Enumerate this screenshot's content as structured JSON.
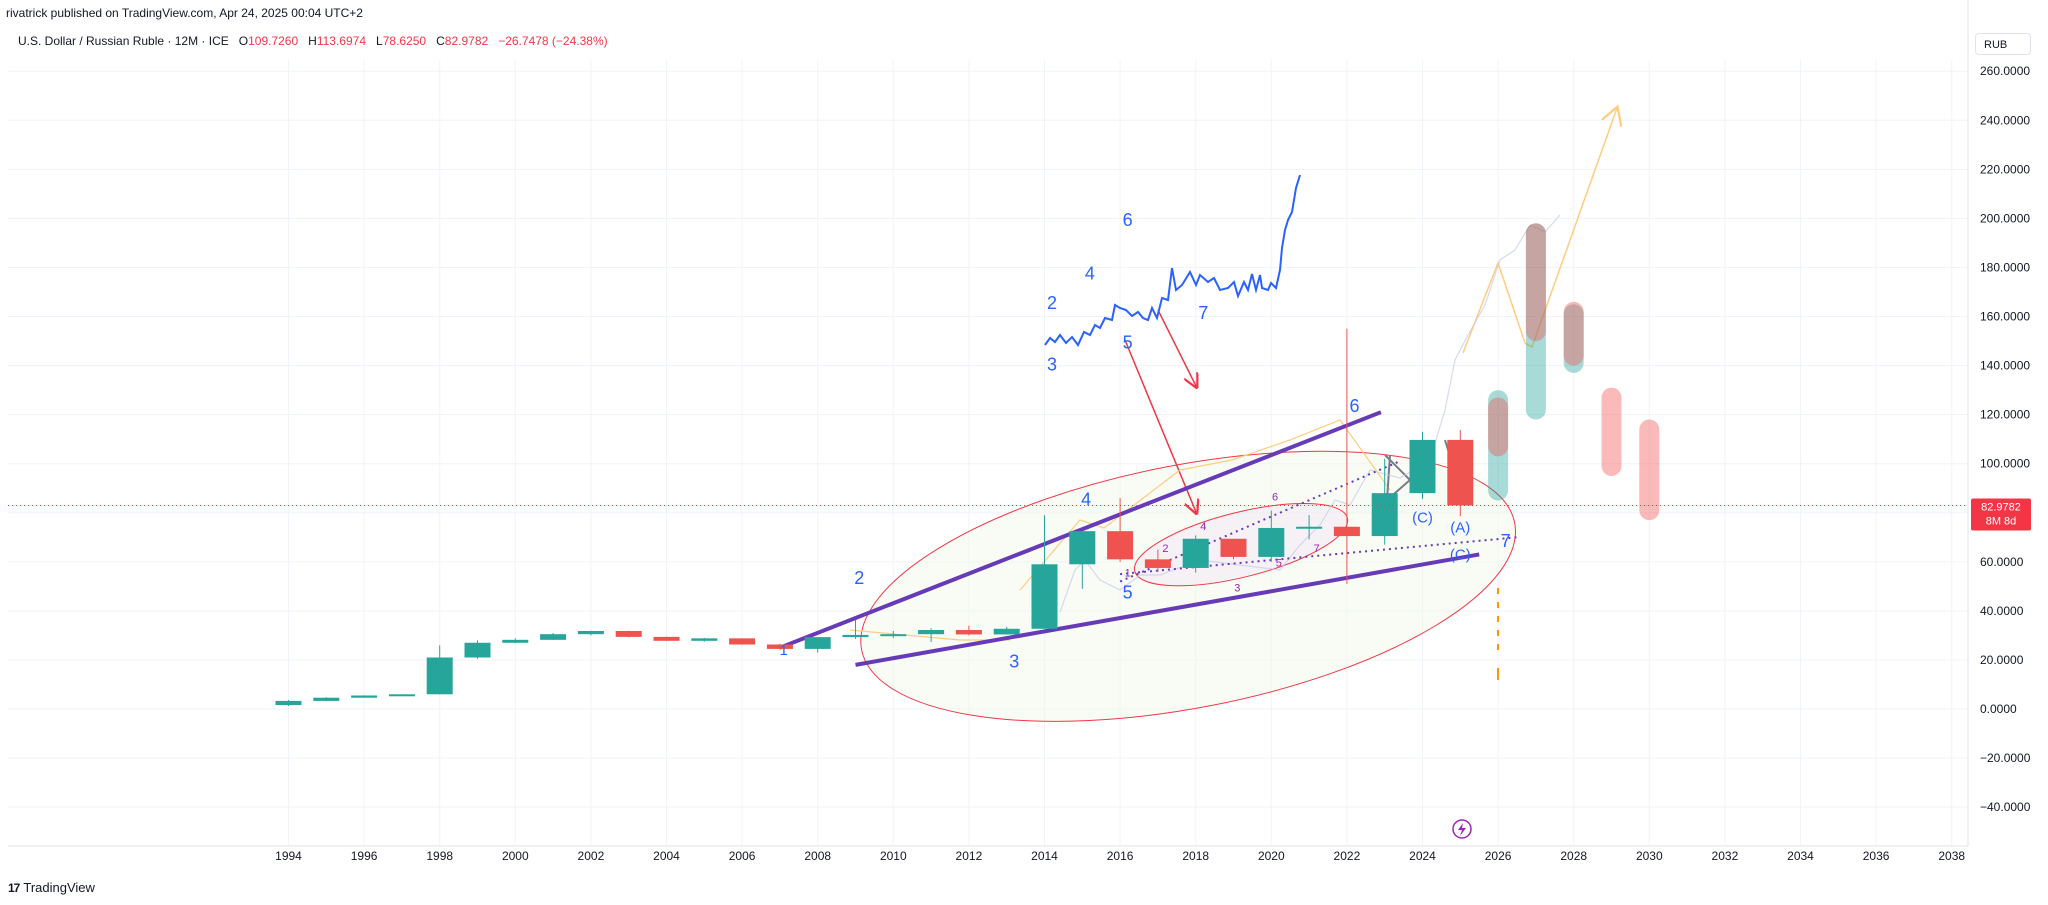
{
  "header": {
    "published": "rivatrick published on TradingView.com, Apr 24, 2025 00:04 UTC+2",
    "symbol_title": "U.S. Dollar / Russian Ruble · 12M · ICE",
    "ohlc": [
      {
        "label": "O",
        "value": "109.7260"
      },
      {
        "label": "H",
        "value": "113.6974"
      },
      {
        "label": "L",
        "value": "78.6250"
      },
      {
        "label": "C",
        "value": "82.9782"
      }
    ],
    "change": "−26.7478 (−24.38%)",
    "currency": "RUB"
  },
  "price_tag": {
    "value": "82.9782",
    "countdown": "8M 8d"
  },
  "footer": {
    "brand": "TradingView",
    "logo_text": "17"
  },
  "colors": {
    "up": "#26a69a",
    "down": "#ef5350",
    "trendline": "#673ab7",
    "annotation_blue": "#2962ff",
    "ellipse": "#f23645",
    "projection": "#ffcc80"
  },
  "chart_data": {
    "type": "candlestick",
    "title": "U.S. Dollar / Russian Ruble · 12M · ICE",
    "x_ticks": [
      "1994",
      "1996",
      "1998",
      "2000",
      "2002",
      "2004",
      "2006",
      "2008",
      "2010",
      "2012",
      "2014",
      "2016",
      "2018",
      "2020",
      "2022",
      "2024",
      "2026",
      "2028",
      "2030",
      "2032",
      "2034",
      "2036",
      "2038"
    ],
    "y_ticks": [
      "260.0000",
      "240.0000",
      "220.0000",
      "200.0000",
      "180.0000",
      "160.0000",
      "140.0000",
      "120.0000",
      "100.0000",
      "80.0000",
      "60.0000",
      "40.0000",
      "20.0000",
      "0.0000",
      "−20.0000",
      "−40.0000"
    ],
    "ylim": [
      -48,
      274
    ],
    "candles": [
      {
        "year": 1994,
        "open": 1.6,
        "high": 3.6,
        "low": 1.2,
        "close": 3.3
      },
      {
        "year": 1995,
        "open": 3.3,
        "high": 4.8,
        "low": 3.2,
        "close": 4.6
      },
      {
        "year": 1996,
        "open": 4.6,
        "high": 5.6,
        "low": 4.6,
        "close": 5.5
      },
      {
        "year": 1997,
        "open": 5.5,
        "high": 6.0,
        "low": 5.4,
        "close": 6.0
      },
      {
        "year": 1998,
        "open": 6.0,
        "high": 26.0,
        "low": 5.9,
        "close": 21.0
      },
      {
        "year": 1999,
        "open": 21.0,
        "high": 28.0,
        "low": 20.5,
        "close": 27.0
      },
      {
        "year": 2000,
        "open": 27.0,
        "high": 28.8,
        "low": 26.8,
        "close": 28.2
      },
      {
        "year": 2001,
        "open": 28.2,
        "high": 31.0,
        "low": 28.1,
        "close": 30.5
      },
      {
        "year": 2002,
        "open": 30.5,
        "high": 31.9,
        "low": 30.0,
        "close": 31.8
      },
      {
        "year": 2003,
        "open": 31.8,
        "high": 31.9,
        "low": 29.2,
        "close": 29.4
      },
      {
        "year": 2004,
        "open": 29.4,
        "high": 29.5,
        "low": 27.7,
        "close": 27.8
      },
      {
        "year": 2005,
        "open": 27.8,
        "high": 29.0,
        "low": 27.4,
        "close": 28.8
      },
      {
        "year": 2006,
        "open": 28.8,
        "high": 28.8,
        "low": 26.2,
        "close": 26.3
      },
      {
        "year": 2007,
        "open": 26.3,
        "high": 26.6,
        "low": 24.2,
        "close": 24.5
      },
      {
        "year": 2008,
        "open": 24.5,
        "high": 29.0,
        "low": 23.0,
        "close": 29.3
      },
      {
        "year": 2009,
        "open": 29.3,
        "high": 36.4,
        "low": 28.6,
        "close": 30.2
      },
      {
        "year": 2010,
        "open": 30.2,
        "high": 31.8,
        "low": 28.9,
        "close": 30.5
      },
      {
        "year": 2011,
        "open": 30.5,
        "high": 32.9,
        "low": 27.3,
        "close": 32.2
      },
      {
        "year": 2012,
        "open": 32.2,
        "high": 34.0,
        "low": 30.0,
        "close": 30.4
      },
      {
        "year": 2013,
        "open": 30.4,
        "high": 33.5,
        "low": 30.3,
        "close": 32.7
      },
      {
        "year": 2014,
        "open": 32.7,
        "high": 79.0,
        "low": 32.7,
        "close": 59.0
      },
      {
        "year": 2015,
        "open": 59.0,
        "high": 72.0,
        "low": 49.0,
        "close": 72.5
      },
      {
        "year": 2016,
        "open": 72.5,
        "high": 86.0,
        "low": 60.0,
        "close": 61.0
      },
      {
        "year": 2017,
        "open": 61.0,
        "high": 65.0,
        "low": 55.8,
        "close": 57.5
      },
      {
        "year": 2018,
        "open": 57.5,
        "high": 70.8,
        "low": 55.6,
        "close": 69.4
      },
      {
        "year": 2019,
        "open": 69.4,
        "high": 67.0,
        "low": 61.0,
        "close": 62.0
      },
      {
        "year": 2020,
        "open": 62.0,
        "high": 80.9,
        "low": 60.0,
        "close": 73.8
      },
      {
        "year": 2021,
        "open": 73.8,
        "high": 79.0,
        "low": 69.2,
        "close": 74.3
      },
      {
        "year": 2022,
        "open": 74.3,
        "high": 155.0,
        "low": 51.0,
        "close": 70.5
      },
      {
        "year": 2023,
        "open": 70.5,
        "high": 102.0,
        "low": 67.0,
        "close": 88.0
      },
      {
        "year": 2024,
        "open": 88.0,
        "high": 113.0,
        "low": 85.6,
        "close": 109.7
      },
      {
        "year": 2025,
        "open": 109.7,
        "high": 113.7,
        "low": 78.6,
        "close": 82.9782
      }
    ],
    "forecast_bars": [
      {
        "year": 2026,
        "color": "up",
        "low": 85,
        "high": 130
      },
      {
        "year": 2026,
        "color": "down",
        "low": 103,
        "high": 127
      },
      {
        "year": 2027,
        "color": "up",
        "low": 118,
        "high": 198
      },
      {
        "year": 2027,
        "color": "down",
        "low": 150,
        "high": 198
      },
      {
        "year": 2028,
        "color": "up",
        "low": 137,
        "high": 165
      },
      {
        "year": 2028,
        "color": "down",
        "low": 140,
        "high": 166
      },
      {
        "year": 2029,
        "color": "down",
        "low": 95,
        "high": 131
      },
      {
        "year": 2030,
        "color": "down",
        "low": 77,
        "high": 118
      }
    ],
    "trendlines": [
      {
        "x": [
          2007.0,
          2022.9
        ],
        "y": [
          25,
          121
        ]
      },
      {
        "x": [
          2009.0,
          2025.5
        ],
        "y": [
          18,
          63
        ]
      }
    ],
    "dotted_lines": [
      {
        "x": [
          2016.0,
          2026.5
        ],
        "y": [
          55,
          70
        ]
      },
      {
        "x": [
          2016.0,
          2023.4
        ],
        "y": [
          52,
          101
        ]
      }
    ],
    "elliptical_zones": [
      {
        "center_x": 2017.8,
        "center_y": 50,
        "rx_years": 8.8,
        "ry_value": 90,
        "rotation_deg": -11
      },
      {
        "center_x": 2019.2,
        "center_y": 67,
        "rx_years": 2.9,
        "ry_value": 24,
        "rotation_deg": -14
      }
    ],
    "wave_labels": [
      {
        "text": "1",
        "x": 2007.1,
        "y": 22,
        "size": "mid"
      },
      {
        "text": "2",
        "x": 2009.1,
        "y": 51,
        "size": "large"
      },
      {
        "text": "3",
        "x": 2013.2,
        "y": 17,
        "size": "large"
      },
      {
        "text": "4",
        "x": 2015.1,
        "y": 83,
        "size": "large"
      },
      {
        "text": "5",
        "x": 2016.2,
        "y": 45,
        "size": "large"
      },
      {
        "text": "6",
        "x": 2022.2,
        "y": 121,
        "size": "large"
      },
      {
        "text": "7",
        "x": 2026.2,
        "y": 66,
        "size": "large"
      },
      {
        "text": "1",
        "x": 2016.2,
        "y": 54,
        "size": "small"
      },
      {
        "text": "2",
        "x": 2017.2,
        "y": 64,
        "size": "small"
      },
      {
        "text": "3",
        "x": 2019.1,
        "y": 48,
        "size": "small"
      },
      {
        "text": "4",
        "x": 2018.2,
        "y": 73,
        "size": "small"
      },
      {
        "text": "5",
        "x": 2020.2,
        "y": 58,
        "size": "small"
      },
      {
        "text": "6",
        "x": 2020.1,
        "y": 85,
        "size": "small"
      },
      {
        "text": "7",
        "x": 2021.2,
        "y": 64,
        "size": "small"
      },
      {
        "text": "(C)",
        "x": 2024.0,
        "y": 76,
        "size": "mid"
      },
      {
        "text": "(A)",
        "x": 2025.0,
        "y": 72,
        "size": "mid"
      },
      {
        "text": "(C)",
        "x": 2025.0,
        "y": 61,
        "size": "mid"
      }
    ],
    "inset_labels": [
      {
        "text": "3",
        "x": 2014.2,
        "y": 138
      },
      {
        "text": "2",
        "x": 2014.2,
        "y": 163
      },
      {
        "text": "4",
        "x": 2015.2,
        "y": 175
      },
      {
        "text": "5",
        "x": 2016.2,
        "y": 147
      },
      {
        "text": "6",
        "x": 2016.2,
        "y": 197
      },
      {
        "text": "7",
        "x": 2018.2,
        "y": 159
      }
    ]
  }
}
